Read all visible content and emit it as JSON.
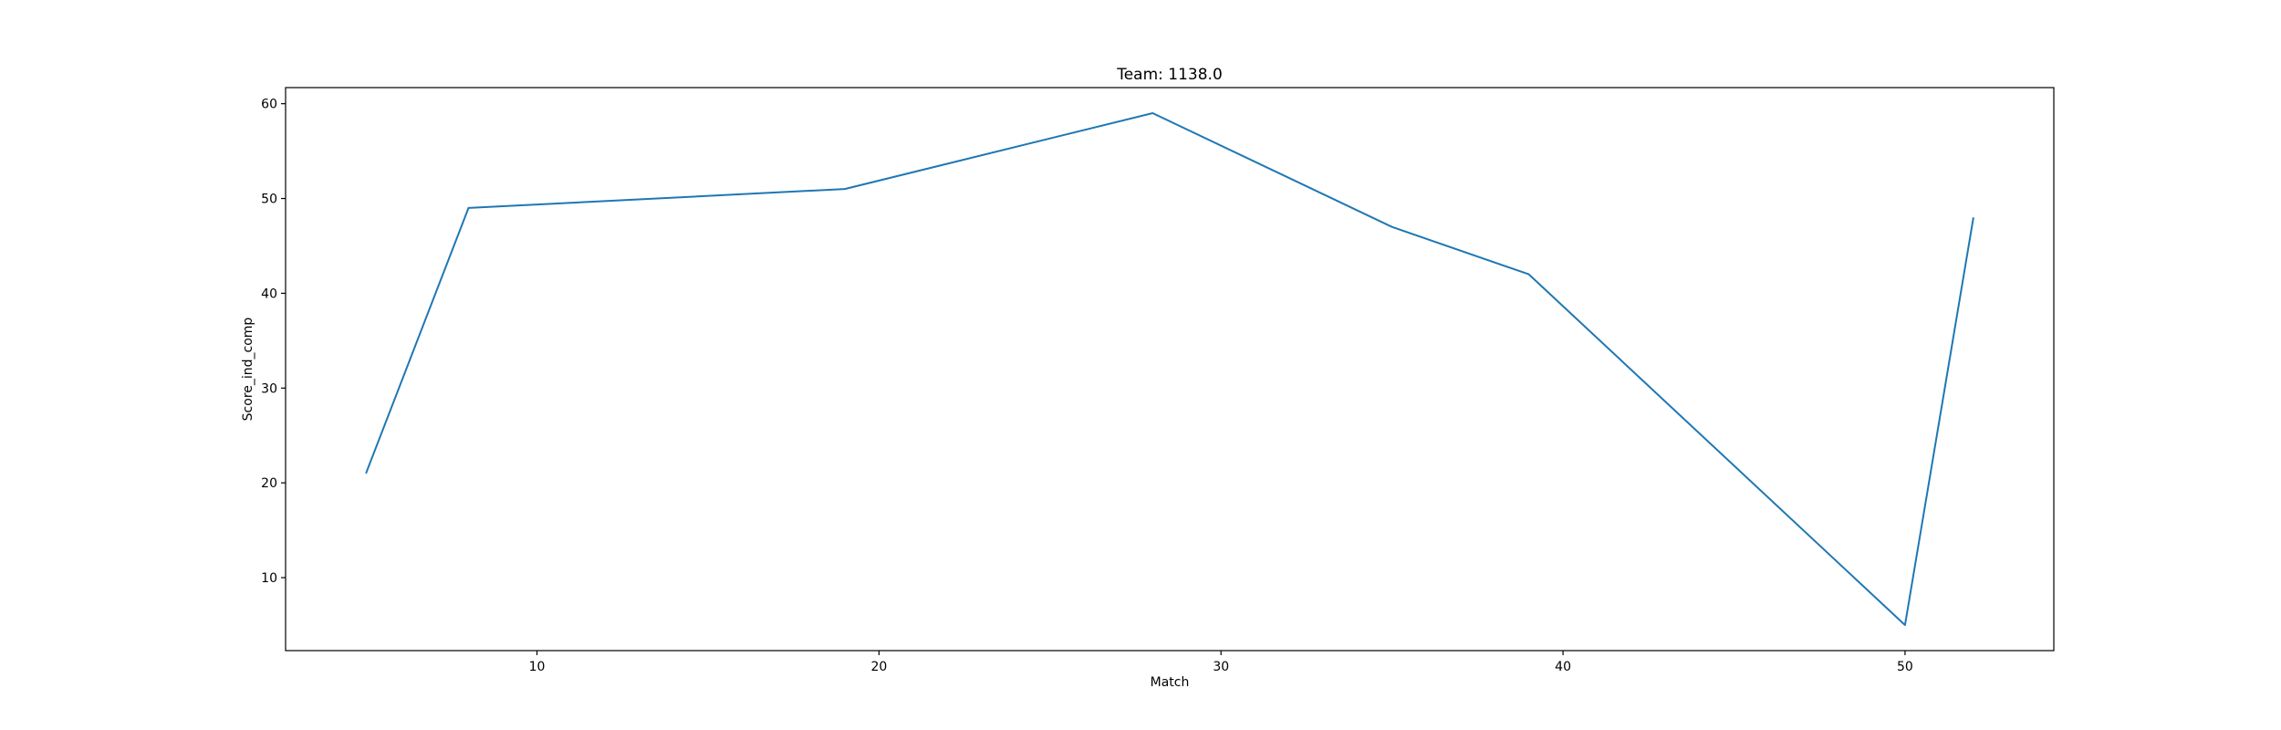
{
  "chart_data": {
    "type": "line",
    "title": "Team: 1138.0",
    "xlabel": "Match",
    "ylabel": "Score_ind_comp",
    "xlim": [
      2.65,
      54.35
    ],
    "ylim": [
      2.3,
      61.7
    ],
    "xticks": [
      10,
      20,
      30,
      40,
      50
    ],
    "yticks": [
      10,
      20,
      30,
      40,
      50,
      60
    ],
    "grid": false,
    "series": [
      {
        "color": "#1f77b4",
        "x": [
          5,
          8,
          19,
          28,
          35,
          39,
          50,
          52
        ],
        "y": [
          21,
          49,
          51,
          59,
          47,
          42,
          5,
          48
        ]
      }
    ]
  }
}
